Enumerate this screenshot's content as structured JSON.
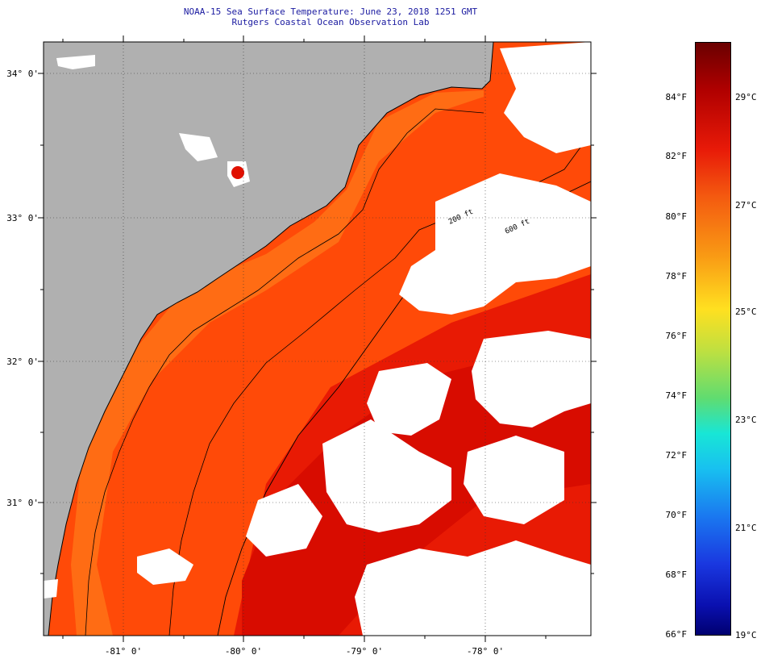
{
  "header": {
    "title": "NOAA-15 Sea Surface Temperature:  June 23, 2018 1251 GMT",
    "subtitle": "Rutgers Coastal Ocean Observation Lab"
  },
  "map": {
    "lat_labels": [
      "34° 0'",
      "33° 0'",
      "32° 0'",
      "31° 0'"
    ],
    "lon_labels": [
      "-81° 0'",
      "-80° 0'",
      "-79° 0'",
      "-78° 0'"
    ],
    "isobath_labels": [
      "200 ft",
      "600 ft"
    ],
    "colors": {
      "land": "#b0b0b0",
      "cloud": "#ffffff",
      "sst_warm": "#ff3a00",
      "sst_hot": "#e01000",
      "sst_nearshore": "#ff6a10"
    }
  },
  "colorbar": {
    "fahrenheit": [
      "84°F",
      "82°F",
      "80°F",
      "78°F",
      "76°F",
      "74°F",
      "72°F",
      "70°F",
      "68°F",
      "66°F"
    ],
    "celsius": [
      "29°C",
      "27°C",
      "25°C",
      "23°C",
      "21°C",
      "19°C"
    ]
  }
}
